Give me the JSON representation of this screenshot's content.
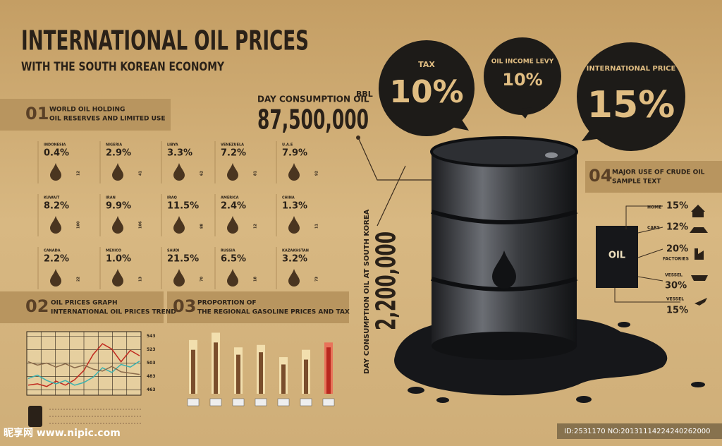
{
  "header": {
    "title": "INTERNATIONAL OIL PRICES",
    "subtitle": "WITH THE SOUTH KOREAN ECONOMY"
  },
  "bubbles": [
    {
      "label": "TAX",
      "value": "10%"
    },
    {
      "label": "OIL INCOME LEVY",
      "value": "10%"
    },
    {
      "label": "INTERNATIONAL PRICE",
      "value": "15%"
    }
  ],
  "day_consumption": {
    "label": "DAY CONSUMPTION OIL",
    "unit": "BBL",
    "value": "87,500,000"
  },
  "korea_consumption": {
    "label": "DAY CONSUMPTION OIL AT SOUTH KOREA",
    "value": "2,200,000"
  },
  "sections": [
    {
      "number": "01",
      "title": "WORLD OIL HOLDING",
      "subtitle": "OIL RESERVES AND LIMITED USE"
    },
    {
      "number": "02",
      "title": "OIL PRICES GRAPH",
      "subtitle": "INTERNATIONAL OIL PRICES TREND"
    },
    {
      "number": "03",
      "title": "PROPORTION OF",
      "subtitle": "THE REGIONAL GASOLINE PRICES AND TAX"
    },
    {
      "number": "04",
      "title": "MAJOR USE OF CRUDE OIL",
      "subtitle": "SAMPLE TEXT"
    }
  ],
  "reserves": [
    {
      "country": "INDONESIA",
      "share": "0.4%",
      "years": "12"
    },
    {
      "country": "NIGERIA",
      "share": "2.9%",
      "years": "41"
    },
    {
      "country": "LIBYA",
      "share": "3.3%",
      "years": "62"
    },
    {
      "country": "VENEZUELA",
      "share": "7.2%",
      "years": "81"
    },
    {
      "country": "U.A.E",
      "share": "7.9%",
      "years": "92"
    },
    {
      "country": "KUWAIT",
      "share": "8.2%",
      "years": "100"
    },
    {
      "country": "IRAN",
      "share": "9.9%",
      "years": "106"
    },
    {
      "country": "IRAQ",
      "share": "11.5%",
      "years": "88"
    },
    {
      "country": "AMERICA",
      "share": "2.4%",
      "years": "12"
    },
    {
      "country": "CHINA",
      "share": "1.3%",
      "years": "11"
    },
    {
      "country": "CANADA",
      "share": "2.2%",
      "years": "22"
    },
    {
      "country": "MEXICO",
      "share": "1.0%",
      "years": "13"
    },
    {
      "country": "SAUDI",
      "share": "21.5%",
      "years": "70"
    },
    {
      "country": "RUSSIA",
      "share": "6.5%",
      "years": "18"
    },
    {
      "country": "KAZAKHSTAN",
      "share": "3.2%",
      "years": "73"
    }
  ],
  "price_graph": {
    "ylim": [
      455,
      550
    ],
    "yticks": [
      463,
      483,
      503,
      523,
      543
    ],
    "series": [
      {
        "color": "#c0281e",
        "values": [
          470,
          472,
          468,
          476,
          470,
          478,
          492,
          516,
          532,
          524,
          505,
          522,
          514
        ]
      },
      {
        "color": "#3bb2b0",
        "values": [
          480,
          485,
          477,
          472,
          477,
          470,
          474,
          482,
          496,
          489,
          501,
          497,
          506
        ]
      },
      {
        "color": "#8a6a4a",
        "values": [
          505,
          500,
          503,
          497,
          502,
          496,
          500,
          494,
          491,
          498,
          490,
          488,
          486
        ]
      }
    ]
  },
  "gasoline_bars": {
    "ylim": [
      0,
      2.6
    ],
    "color": "#f2dfae",
    "inner_color": "#7a4e2c",
    "highlight_color": "#e8735a",
    "highlight_inner_color": "#b8281e",
    "totals": [
      2.2,
      2.5,
      1.9,
      2.0,
      1.5,
      1.8,
      2.1
    ],
    "taxes": [
      1.8,
      2.1,
      1.6,
      1.7,
      1.2,
      1.4,
      1.9
    ]
  },
  "uses": [
    {
      "label": "HOME",
      "value": "15%"
    },
    {
      "label": "CARS",
      "value": "12%"
    },
    {
      "label": "FACTORIES",
      "value": "20%"
    },
    {
      "label": "VESSEL",
      "value": "30%"
    },
    {
      "label": "VESSEL",
      "value": "15%"
    }
  ],
  "barrel_label": "OIL",
  "watermark": {
    "site": "昵享网 www.nipic.com",
    "id": "ID:2531170 NO:20131114224240262000"
  }
}
